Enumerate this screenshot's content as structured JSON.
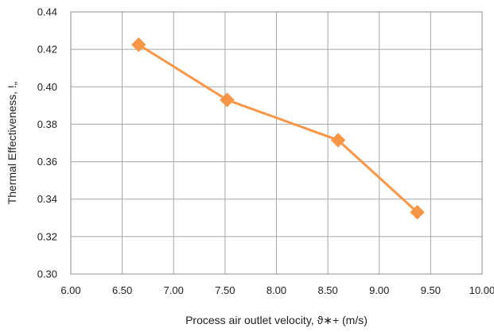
{
  "chart_data": {
    "type": "line",
    "title": "",
    "xlabel": "Process air outlet velocity, ϑ∗+ (m/s)",
    "ylabel": "Thermal Effectiveness, !„",
    "xlim": [
      6.0,
      10.0
    ],
    "ylim": [
      0.3,
      0.44
    ],
    "x_ticks": [
      "6.00",
      "6.50",
      "7.00",
      "7.50",
      "8.00",
      "8.50",
      "9.00",
      "9.50",
      "10.00"
    ],
    "y_ticks": [
      "0.30",
      "0.32",
      "0.34",
      "0.36",
      "0.38",
      "0.40",
      "0.42",
      "0.44"
    ],
    "grid": true,
    "legend": "none",
    "series": [
      {
        "color": "#F79646",
        "marker": "diamond",
        "x": [
          6.66,
          7.52,
          8.6,
          9.37
        ],
        "y": [
          0.4225,
          0.393,
          0.3715,
          0.333
        ]
      }
    ]
  }
}
